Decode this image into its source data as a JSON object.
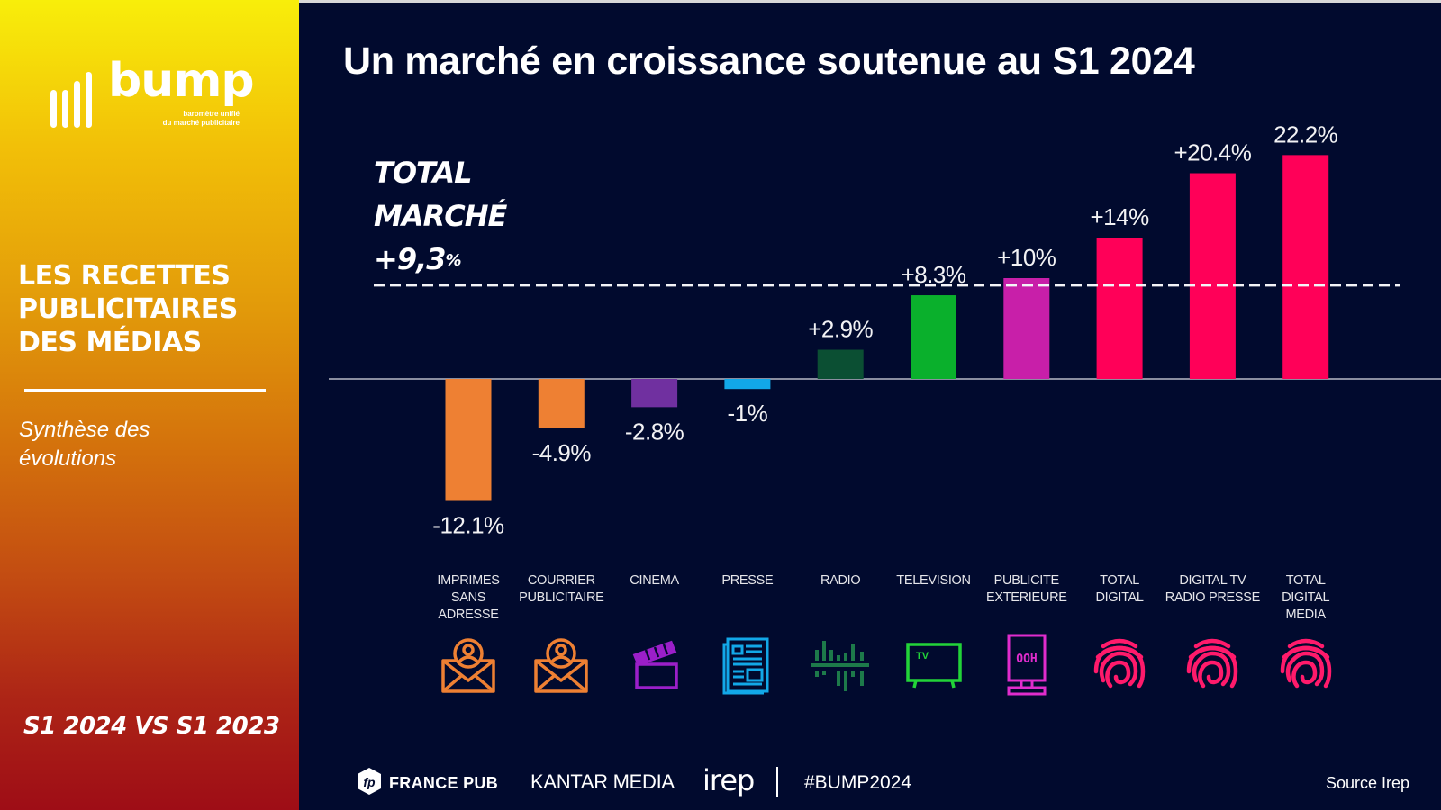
{
  "sidebar": {
    "logo": {
      "word": "bump",
      "tagline_line1": "baromètre unifié",
      "tagline_line2": "du marché publicitaire"
    },
    "heading_lines": [
      "LES RECETTES",
      "PUBLICITAIRES",
      "DES MÉDIAS"
    ],
    "subtitle_lines": [
      "Synthèse des",
      "évolutions"
    ],
    "period": "S1 2024 VS S1 2023"
  },
  "main": {
    "title": "Un marché en croissance soutenue au S1 2024",
    "total_marche": {
      "line1": "TOTAL",
      "line2": "MARCHÉ",
      "value": "+9,3",
      "unit": "%"
    }
  },
  "chart_data": {
    "type": "bar",
    "title": "Un marché en croissance soutenue au S1 2024",
    "xlabel": "",
    "ylabel": "",
    "ylim": [
      -12.5,
      22.5
    ],
    "grid": false,
    "legend": "none",
    "categories": [
      [
        "IMPRIMES",
        "SANS",
        "ADRESSE"
      ],
      [
        "COURRIER",
        "PUBLICITAIRE"
      ],
      [
        "CINEMA"
      ],
      [
        "PRESSE"
      ],
      [
        "RADIO"
      ],
      [
        "TELEVISION"
      ],
      [
        "PUBLICITE",
        "EXTERIEURE"
      ],
      [
        "TOTAL",
        "DIGITAL"
      ],
      [
        "DIGITAL TV",
        "RADIO PRESSE"
      ],
      [
        "TOTAL",
        "DIGITAL",
        "MEDIA"
      ]
    ],
    "values": [
      -12.1,
      -4.9,
      -2.8,
      -1,
      2.9,
      8.3,
      10,
      14,
      20.4,
      22.2
    ],
    "data_labels": [
      "-12.1%",
      "-4.9%",
      "-2.8%",
      "-1%",
      "+2.9%",
      "+8.3%",
      "+10%",
      "+14%",
      "+20.4%",
      "22.2%"
    ],
    "colors": [
      "#ee8033",
      "#ee8033",
      "#7030a0",
      "#12a8e8",
      "#0b4f33",
      "#0ab02c",
      "#c81fa9",
      "#ff0058",
      "#ff0058",
      "#ff0058"
    ],
    "icons": [
      "mail-person-icon",
      "mail-person-icon",
      "clapperboard-icon",
      "newspaper-icon",
      "radio-wave-icon",
      "tv-icon",
      "ooh-billboard-icon",
      "fingerprint-icon",
      "fingerprint-icon",
      "fingerprint-icon"
    ],
    "icon_colors": [
      "#ee8033",
      "#ee8033",
      "#9b1fc9",
      "#12a8e8",
      "#1d7a4a",
      "#22d438",
      "#e02ccd",
      "#ff1a6b",
      "#ff1a6b",
      "#ff1a6b"
    ],
    "reference_line": {
      "value": 9.3,
      "label": "TOTAL MARCHÉ +9,3%",
      "style": "dashed"
    }
  },
  "footer": {
    "france_pub": "FRANCE PUB",
    "kantar": "KANTAR MEDIA",
    "irep": "irep",
    "hashtag": "#BUMP2024",
    "source": "Source Irep"
  }
}
